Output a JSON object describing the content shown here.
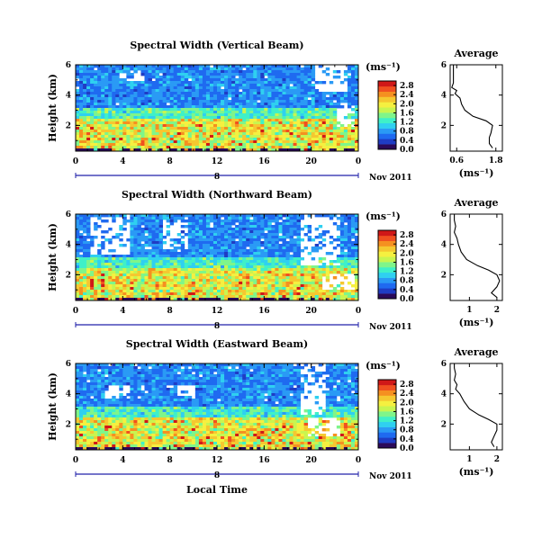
{
  "figure": {
    "ylabel": "Height (km)",
    "xlabel": "Local Time",
    "date_label": "Nov 2011",
    "day_label": "8",
    "units": "(ms⁻¹)"
  },
  "colormap": [
    "#2b0a5a",
    "#1f3cc4",
    "#1f6af0",
    "#2a9af5",
    "#2fd0f0",
    "#3ff0c8",
    "#7ff58a",
    "#c8f550",
    "#f5f040",
    "#f5c830",
    "#f59020",
    "#f05020",
    "#d01818"
  ],
  "chart_data": [
    {
      "type": "heatmap",
      "title": "Spectral Width (Vertical Beam)",
      "x_ticks": [
        "0",
        "4",
        "8",
        "12",
        "16",
        "20",
        "0"
      ],
      "x_range": [
        0,
        24
      ],
      "y_ticks": [
        "2",
        "4",
        "6"
      ],
      "y_range": [
        0.3,
        6
      ],
      "colorbar": {
        "ticks": [
          "0.0",
          "0.4",
          "0.8",
          "1.2",
          "1.6",
          "2.0",
          "2.4",
          "2.8"
        ],
        "range": [
          0,
          3.0
        ]
      },
      "average": {
        "title": "Average",
        "xlabel": "(ms⁻¹)",
        "x_ticks": [
          "0.6",
          "1.8"
        ],
        "x_range": [
          0.4,
          2.0
        ],
        "y_ticks": [
          "2",
          "4",
          "6"
        ],
        "y_range": [
          0.3,
          6
        ],
        "profile": [
          [
            0.5,
            1.7
          ],
          [
            0.8,
            1.6
          ],
          [
            1.2,
            1.6
          ],
          [
            1.5,
            1.65
          ],
          [
            2.0,
            1.7
          ],
          [
            2.3,
            1.5
          ],
          [
            2.6,
            1.1
          ],
          [
            3.0,
            0.85
          ],
          [
            3.4,
            0.75
          ],
          [
            3.8,
            0.7
          ],
          [
            4.1,
            0.55
          ],
          [
            4.3,
            0.6
          ],
          [
            4.5,
            0.45
          ],
          [
            4.8,
            0.5
          ],
          [
            5.2,
            0.5
          ],
          [
            5.6,
            0.5
          ],
          [
            6.0,
            0.5
          ]
        ]
      }
    },
    {
      "type": "heatmap",
      "title": "Spectral Width (Northward Beam)",
      "x_ticks": [
        "0",
        "4",
        "8",
        "12",
        "16",
        "20",
        "0"
      ],
      "x_range": [
        0,
        24
      ],
      "y_ticks": [
        "2",
        "4",
        "6"
      ],
      "y_range": [
        0.3,
        6
      ],
      "colorbar": {
        "ticks": [
          "0.0",
          "0.4",
          "0.8",
          "1.2",
          "1.6",
          "2.0",
          "2.4",
          "2.8"
        ],
        "range": [
          0,
          3.0
        ]
      },
      "average": {
        "title": "Average",
        "xlabel": "(ms⁻¹)",
        "x_ticks": [
          "1",
          "2"
        ],
        "x_range": [
          0.3,
          2.2
        ],
        "y_ticks": [
          "2",
          "4",
          "6"
        ],
        "y_range": [
          0.3,
          6
        ],
        "profile": [
          [
            0.5,
            2.0
          ],
          [
            0.8,
            1.8
          ],
          [
            1.2,
            2.0
          ],
          [
            1.6,
            2.1
          ],
          [
            2.0,
            2.0
          ],
          [
            2.3,
            1.7
          ],
          [
            2.6,
            1.3
          ],
          [
            3.0,
            0.9
          ],
          [
            3.5,
            0.7
          ],
          [
            4.0,
            0.6
          ],
          [
            4.4,
            0.55
          ],
          [
            4.8,
            0.45
          ],
          [
            5.2,
            0.5
          ],
          [
            5.6,
            0.45
          ],
          [
            6.0,
            0.45
          ]
        ]
      }
    },
    {
      "type": "heatmap",
      "title": "Spectral Width (Eastward Beam)",
      "x_ticks": [
        "0",
        "4",
        "8",
        "12",
        "16",
        "20",
        "0"
      ],
      "x_range": [
        0,
        24
      ],
      "y_ticks": [
        "2",
        "4",
        "6"
      ],
      "y_range": [
        0.3,
        6
      ],
      "colorbar": {
        "ticks": [
          "0.0",
          "0.4",
          "0.8",
          "1.2",
          "1.6",
          "2.0",
          "2.4",
          "2.8"
        ],
        "range": [
          0,
          3.0
        ]
      },
      "average": {
        "title": "Average",
        "xlabel": "(ms⁻¹)",
        "x_ticks": [
          "1",
          "2"
        ],
        "x_range": [
          0.3,
          2.2
        ],
        "y_ticks": [
          "2",
          "4",
          "6"
        ],
        "y_range": [
          0.3,
          6
        ],
        "profile": [
          [
            0.5,
            1.9
          ],
          [
            0.8,
            1.8
          ],
          [
            1.2,
            1.9
          ],
          [
            1.6,
            2.0
          ],
          [
            2.0,
            2.0
          ],
          [
            2.3,
            1.7
          ],
          [
            2.6,
            1.35
          ],
          [
            3.0,
            1.0
          ],
          [
            3.5,
            0.8
          ],
          [
            4.0,
            0.65
          ],
          [
            4.3,
            0.5
          ],
          [
            4.6,
            0.55
          ],
          [
            4.9,
            0.45
          ],
          [
            5.3,
            0.5
          ],
          [
            5.7,
            0.45
          ],
          [
            6.0,
            0.45
          ]
        ]
      }
    }
  ]
}
